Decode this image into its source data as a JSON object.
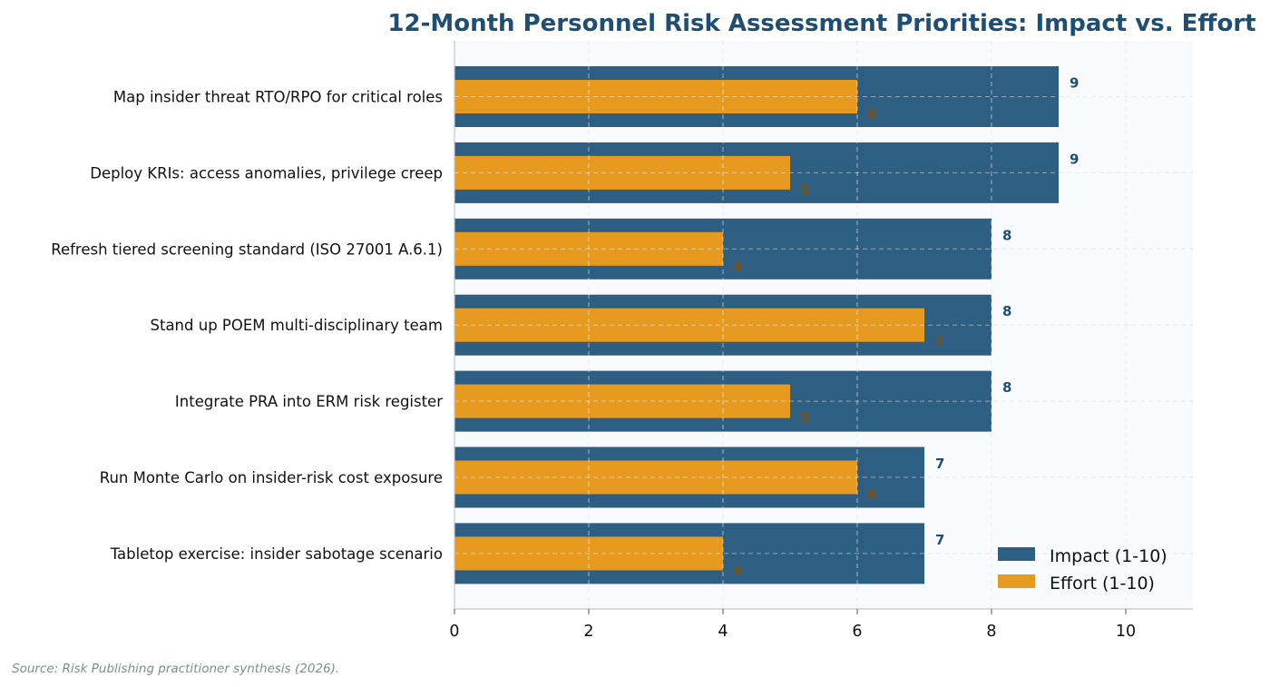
{
  "chart_data": {
    "type": "bar",
    "orientation": "horizontal",
    "title": "12-Month Personnel Risk Assessment Priorities: Impact vs. Effort",
    "categories": [
      "Map insider threat RTO/RPO for critical roles",
      "Deploy KRIs: access anomalies, privilege creep",
      "Refresh tiered screening standard (ISO 27001 A.6.1)",
      "Stand up POEM multi-disciplinary team",
      "Integrate PRA into ERM risk register",
      "Run Monte Carlo on insider-risk cost exposure",
      "Tabletop exercise: insider sabotage scenario"
    ],
    "series": [
      {
        "name": "Impact (1-10)",
        "values": [
          9,
          9,
          8,
          8,
          8,
          7,
          7
        ],
        "color": "#2e5f83"
      },
      {
        "name": "Effort (1-10)",
        "values": [
          6,
          5,
          4,
          7,
          5,
          6,
          4
        ],
        "color": "#e69a20"
      }
    ],
    "xlim": [
      0,
      11
    ],
    "xticks": [
      0,
      2,
      4,
      6,
      8,
      10
    ],
    "grid": true,
    "legend_position": "bottom-right",
    "source": "Source: Risk Publishing practitioner synthesis (2026).",
    "colors": {
      "title": "#1f4e73",
      "impact_label": "#1f4e73",
      "effort_label": "#7a4e10",
      "plot_background": "#f8fafc",
      "axis": "#bfc6cc",
      "grid": "#d6dde3",
      "source": "#7f8c8d"
    }
  }
}
